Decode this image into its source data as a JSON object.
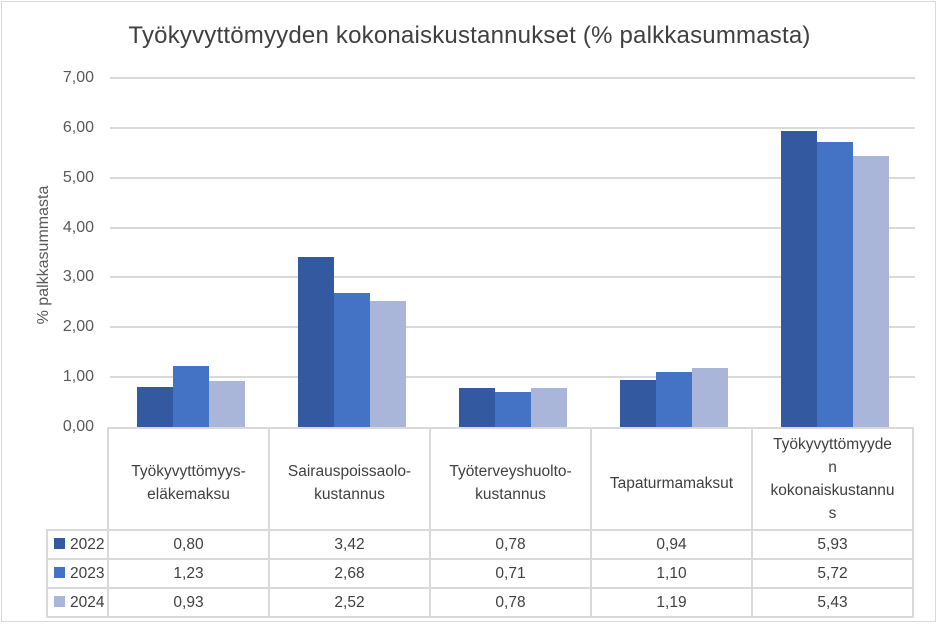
{
  "chart_data": {
    "type": "bar",
    "title": "Työkyvyttömyyden kokonaiskustannukset (% palkkasummasta)",
    "xlabel": "",
    "ylabel": "% palkkasummasta",
    "ylim": [
      0,
      7
    ],
    "yticks": [
      "0,00",
      "1,00",
      "2,00",
      "3,00",
      "4,00",
      "5,00",
      "6,00",
      "7,00"
    ],
    "grid": true,
    "legend_position": "data-table",
    "categories": [
      "Työkyvyttömyys-eläkemaksu",
      "Sairauspoissaolo-kustannus",
      "Työterveyshuolto-kustannus",
      "Tapaturmamaksut",
      "Työkyvyttömyyden kokonaiskustannus"
    ],
    "category_display": [
      [
        "Työkyvyttömyys-",
        "eläkemaksu"
      ],
      [
        "Sairauspoissaolo-",
        "kustannus"
      ],
      [
        "Työterveyshuolto-",
        "kustannus"
      ],
      [
        "Tapaturmamaksut"
      ],
      [
        "Työkyvyttömyyde",
        "n",
        "kokonaiskustannu",
        "s"
      ]
    ],
    "series": [
      {
        "name": "2022",
        "color": "#335aa1",
        "values": [
          0.8,
          3.42,
          0.78,
          0.94,
          5.93
        ],
        "labels": [
          "0,80",
          "3,42",
          "0,78",
          "0,94",
          "5,93"
        ]
      },
      {
        "name": "2023",
        "color": "#4472c4",
        "values": [
          1.23,
          2.68,
          0.71,
          1.1,
          5.72
        ],
        "labels": [
          "1,23",
          "2,68",
          "0,71",
          "1,10",
          "5,72"
        ]
      },
      {
        "name": "2024",
        "color": "#a9b6da",
        "values": [
          0.93,
          2.52,
          0.78,
          1.19,
          5.43
        ],
        "labels": [
          "0,93",
          "2,52",
          "0,78",
          "1,19",
          "5,43"
        ]
      }
    ]
  }
}
